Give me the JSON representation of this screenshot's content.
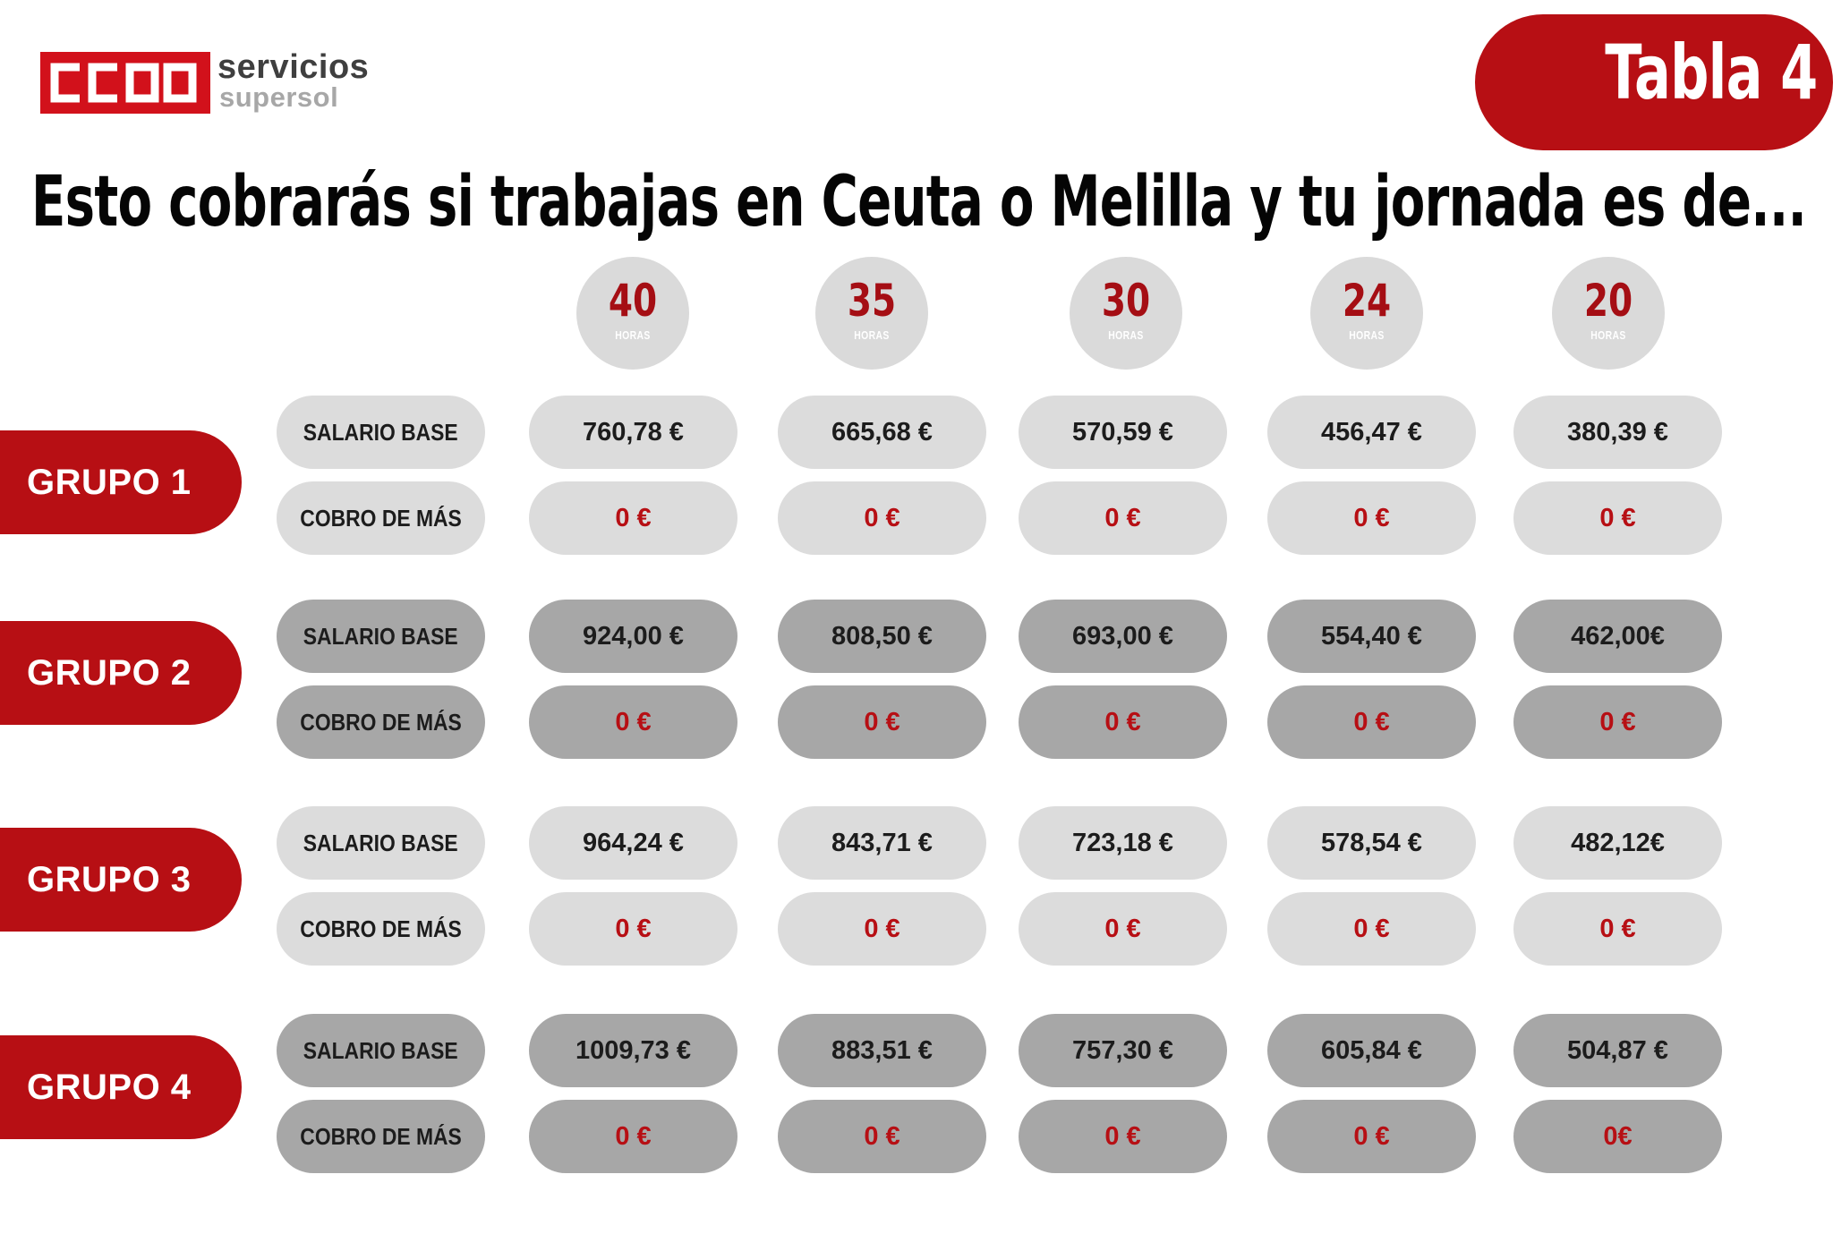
{
  "brand": {
    "line1": "servicios",
    "line2": "supersol",
    "logo_text": "CCOO",
    "red": "#d2111b"
  },
  "tab_label": "Tabla 4",
  "heading": "Esto cobrarás si trabajas en Ceuta o Melilla y tu jornada es de...",
  "hours_unit": "HORAS",
  "hours": [
    "40",
    "35",
    "30",
    "24",
    "20"
  ],
  "row_labels": {
    "base": "SALARIO BASE",
    "extra": "COBRO DE MÁS"
  },
  "groups": [
    {
      "label": "GRUPO 1",
      "salario_base": [
        "760,78 €",
        "665,68 €",
        "570,59 €",
        "456,47 €",
        "380,39 €"
      ],
      "cobro_de_mas": [
        "0 €",
        "0 €",
        "0 €",
        "0 €",
        "0 €"
      ]
    },
    {
      "label": "GRUPO 2",
      "salario_base": [
        "924,00 €",
        "808,50 €",
        "693,00 €",
        "554,40 €",
        "462,00€"
      ],
      "cobro_de_mas": [
        "0 €",
        "0 €",
        "0 €",
        "0 €",
        "0 €"
      ]
    },
    {
      "label": "GRUPO 3",
      "salario_base": [
        "964,24 €",
        "843,71 €",
        "723,18 €",
        "578,54 €",
        "482,12€"
      ],
      "cobro_de_mas": [
        "0 €",
        "0 €",
        "0 €",
        "0 €",
        "0 €"
      ]
    },
    {
      "label": "GRUPO 4",
      "salario_base": [
        "1009,73 €",
        "883,51 €",
        "757,30 €",
        "605,84 €",
        "504,87 €"
      ],
      "cobro_de_mas": [
        "0 €",
        "0 €",
        "0 €",
        "0 €",
        "0€"
      ]
    }
  ],
  "colors": {
    "accent_red": "#b70f14",
    "light_pill": "#dcdcdc",
    "dark_pill": "#a7a7a7",
    "circle": "#dadada"
  }
}
